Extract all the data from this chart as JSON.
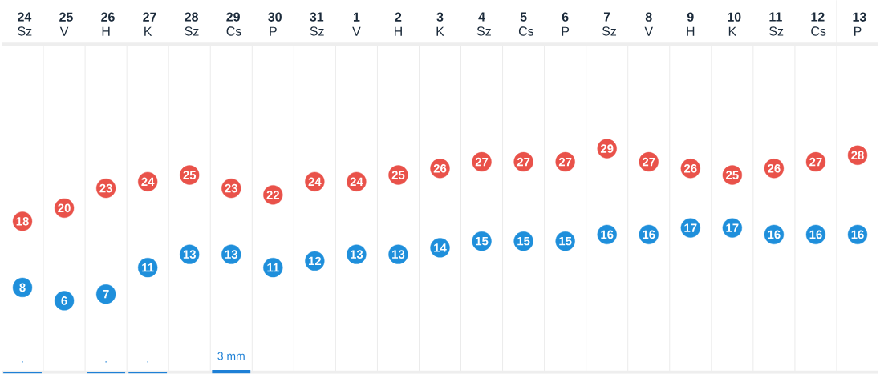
{
  "chart_data": [
    {
      "type": "scatter",
      "categories": [
        "**24** Sz",
        "**25** V",
        "**26** H",
        "**27** K",
        "**28** Sz",
        "**29** Cs",
        "**30** P",
        "**31** Sz",
        "**1** V",
        "**2** H",
        "**3** K",
        "**4** Sz",
        "**5** Cs",
        "**6** P",
        "**7** Sz",
        "**8** V",
        "**9** H",
        "**10** K",
        "**11** Sz",
        "**12** Cs",
        "**13** P"
      ],
      "series": [
        {
          "color": "#e9524a",
          "values": [
            18,
            20,
            23,
            24,
            25,
            23,
            22,
            24,
            24,
            25,
            26,
            27,
            27,
            27,
            29,
            27,
            26,
            25,
            26,
            27,
            28
          ]
        },
        {
          "color": "#1f8fdb",
          "values": [
            8,
            6,
            7,
            11,
            13,
            13,
            11,
            12,
            13,
            13,
            14,
            15,
            15,
            15,
            16,
            16,
            17,
            17,
            16,
            16,
            16
          ]
        }
      ],
      "tick_labels": "x",
      "grid": "x",
      "marker": "circle",
      "data_labels": true
    },
    {
      "type": "bar",
      "tick_labels": false,
      "categories": [
        null,
        null,
        null,
        null,
        null,
        null,
        null,
        null,
        null,
        null,
        null,
        null,
        null,
        null,
        null,
        null,
        null,
        null,
        null,
        null,
        null
      ],
      "series": [
        {
          "color": "#1e80d6",
          "values": [
            0.8,
            null,
            0.8,
            0.8,
            null,
            3,
            null,
            null,
            null,
            null,
            null,
            null,
            null,
            null,
            null,
            null,
            null,
            null,
            null,
            null,
            null
          ],
          "value_labels": [
            ".",
            null,
            ".",
            ".",
            null,
            "3 mm",
            null,
            null,
            null,
            null,
            null,
            null,
            null,
            null,
            null,
            null,
            null,
            null,
            null,
            null,
            null
          ]
        }
      ]
    }
  ]
}
